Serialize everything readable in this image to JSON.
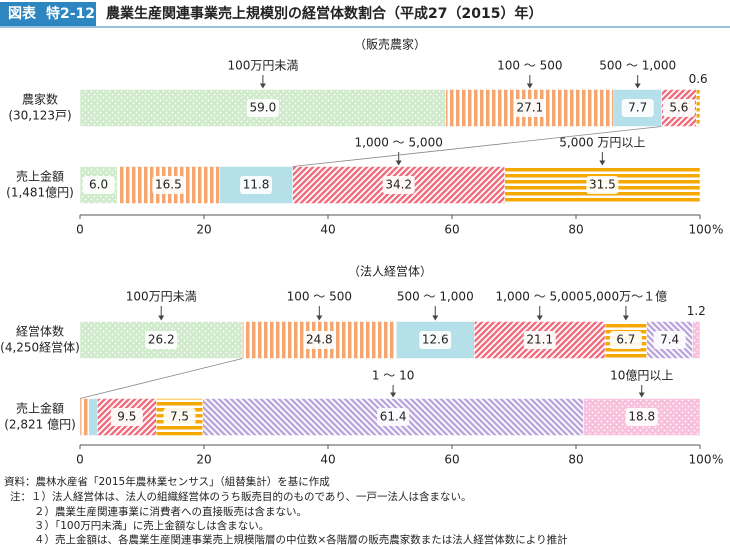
{
  "header": {
    "label": "図表",
    "number": "特2-12",
    "title": "農業生産関連事業売上規模別の経営体数割合（平成27（2015）年）"
  },
  "chart_data": [
    {
      "type": "stacked-barh",
      "subtitle": "（販売農家）",
      "categories": [
        [
          "農家数",
          "(30,123戸)"
        ],
        [
          "売上金額",
          "(1,481億円)"
        ]
      ],
      "series": [
        {
          "name": "100万円未満",
          "color": "#a9d9a2",
          "pattern": "dots",
          "values": [
            59.0,
            6.0
          ],
          "value_labels": [
            "59.0",
            "6.0"
          ]
        },
        {
          "name": "100 ～ 500",
          "color": "#f5a56e",
          "pattern": "vstripes",
          "values": [
            27.1,
            16.5
          ]
        },
        {
          "name": "500 ～ 1,000",
          "color": "#b5dfe9",
          "pattern": "solid",
          "values": [
            7.7,
            11.8
          ]
        },
        {
          "name": "1,000 ～ 5,000",
          "color": "#ef6d7e",
          "pattern": "diagonal",
          "values": [
            5.6,
            34.2
          ]
        },
        {
          "name": "5,000 万円以上",
          "color": "#f5a800",
          "pattern": "hstripes",
          "values": [
            0.6,
            31.5
          ]
        }
      ],
      "xlim": [
        0,
        100
      ],
      "xticks": [
        0,
        20,
        40,
        60,
        80,
        100
      ],
      "xlabel": "%"
    },
    {
      "type": "stacked-barh",
      "subtitle": "（法人経営体）",
      "categories": [
        [
          "経営体数",
          "(4,250経営体)"
        ],
        [
          "売上金額",
          "(2,821 億円)"
        ]
      ],
      "series": [
        {
          "name": "100万円未満",
          "color": "#a9d9a2",
          "pattern": "dots",
          "values": [
            26.2,
            null
          ]
        },
        {
          "name": "100 ～ 500",
          "color": "#f5a56e",
          "pattern": "vstripes",
          "values": [
            24.8,
            1.4
          ],
          "value_labels": [
            "24.8",
            null
          ]
        },
        {
          "name": "500 ～ 1,000",
          "color": "#b5dfe9",
          "pattern": "solid",
          "values": [
            12.6,
            1.4
          ],
          "value_labels": [
            "12.6",
            null
          ]
        },
        {
          "name": "1,000 ～ 5,000",
          "color": "#ef6d7e",
          "pattern": "diagonal",
          "values": [
            21.1,
            9.5
          ]
        },
        {
          "name": "5,000万～１億",
          "color": "#f5a800",
          "pattern": "hstripes",
          "values": [
            6.7,
            7.5
          ]
        },
        {
          "name": "1 ～ 10",
          "color": "#bca6de",
          "pattern": "diagonal2",
          "values": [
            7.4,
            61.4
          ]
        },
        {
          "name": "10億円以上",
          "color": "#f28cbf",
          "pattern": "dots",
          "values": [
            1.2,
            18.8
          ]
        }
      ],
      "xlim": [
        0,
        100
      ],
      "xticks": [
        0,
        20,
        40,
        60,
        80,
        100
      ],
      "xlabel": "%"
    }
  ],
  "notes": [
    "資料：農林水産省「2015年農林業センサス」（組替集計）を基に作成",
    "注：１）法人経営体は、法人の組織経営体のうち販売目的のものであり、一戸一法人は含まない。",
    "２）農業生産関連事業に消費者への直接販売は含まない。",
    "３）「100万円未満」に売上金額なしは含まない。",
    "４）売上金額は、各農業生産関連事業売上規模階層の中位数×各階層の販売農家数または法人経営体数により推計"
  ]
}
